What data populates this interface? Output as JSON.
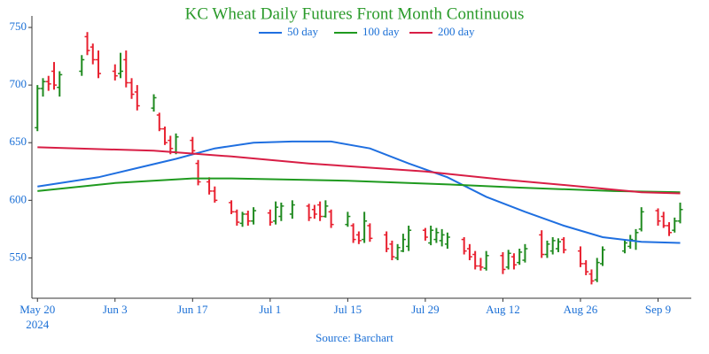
{
  "chart_data": {
    "type": "ohlc",
    "title": "KC Wheat Daily Futures Front Month Continuous",
    "source": "Source: Barchart",
    "x": [
      "2024-05-20",
      "2024-05-21",
      "2024-05-22",
      "2024-05-23",
      "2024-05-24",
      "2024-05-28",
      "2024-05-29",
      "2024-05-30",
      "2024-05-31",
      "2024-06-03",
      "2024-06-04",
      "2024-06-05",
      "2024-06-06",
      "2024-06-07",
      "2024-06-10",
      "2024-06-11",
      "2024-06-12",
      "2024-06-13",
      "2024-06-14",
      "2024-06-17",
      "2024-06-18",
      "2024-06-20",
      "2024-06-21",
      "2024-06-24",
      "2024-06-25",
      "2024-06-26",
      "2024-06-27",
      "2024-06-28",
      "2024-07-01",
      "2024-07-02",
      "2024-07-03",
      "2024-07-05",
      "2024-07-08",
      "2024-07-09",
      "2024-07-10",
      "2024-07-11",
      "2024-07-12",
      "2024-07-15",
      "2024-07-16",
      "2024-07-17",
      "2024-07-18",
      "2024-07-19",
      "2024-07-22",
      "2024-07-23",
      "2024-07-24",
      "2024-07-25",
      "2024-07-26",
      "2024-07-29",
      "2024-07-30",
      "2024-07-31",
      "2024-08-01",
      "2024-08-02",
      "2024-08-05",
      "2024-08-06",
      "2024-08-07",
      "2024-08-08",
      "2024-08-09",
      "2024-08-12",
      "2024-08-13",
      "2024-08-14",
      "2024-08-15",
      "2024-08-16",
      "2024-08-19",
      "2024-08-20",
      "2024-08-21",
      "2024-08-22",
      "2024-08-23",
      "2024-08-26",
      "2024-08-27",
      "2024-08-28",
      "2024-08-29",
      "2024-08-30",
      "2024-09-03",
      "2024-09-04",
      "2024-09-05",
      "2024-09-06",
      "2024-09-09",
      "2024-09-10",
      "2024-09-11",
      "2024-09-12",
      "2024-09-13"
    ],
    "open": [
      663,
      697,
      703,
      712,
      698,
      712,
      742,
      733,
      722,
      712,
      710,
      722,
      702,
      694,
      680,
      674,
      662,
      652,
      642,
      652,
      632,
      616,
      608,
      598,
      590,
      580,
      588,
      582,
      589,
      582,
      586,
      588,
      595,
      592,
      596,
      586,
      590,
      579,
      578,
      570,
      566,
      578,
      570,
      562,
      550,
      556,
      560,
      574,
      563,
      566,
      565,
      562,
      566,
      558,
      553,
      543,
      541,
      552,
      542,
      551,
      546,
      548,
      570,
      553,
      556,
      558,
      566,
      556,
      545,
      536,
      531,
      545,
      556,
      560,
      565,
      575,
      591,
      586,
      578,
      574,
      582
    ],
    "high": [
      700,
      706,
      708,
      720,
      712,
      726,
      746,
      736,
      730,
      718,
      728,
      730,
      706,
      700,
      692,
      676,
      664,
      656,
      658,
      655,
      635,
      620,
      612,
      600,
      592,
      590,
      591,
      594,
      592,
      599,
      598,
      600,
      597,
      596,
      599,
      600,
      592,
      590,
      580,
      573,
      590,
      580,
      573,
      565,
      562,
      571,
      578,
      576,
      578,
      576,
      575,
      572,
      568,
      562,
      556,
      550,
      556,
      555,
      557,
      554,
      558,
      562,
      574,
      565,
      568,
      567,
      568,
      560,
      548,
      540,
      550,
      560,
      566,
      570,
      575,
      594,
      593,
      590,
      581,
      585,
      598
    ],
    "low": [
      660,
      690,
      695,
      696,
      690,
      708,
      726,
      718,
      706,
      704,
      706,
      698,
      688,
      678,
      677,
      660,
      648,
      640,
      640,
      640,
      613,
      605,
      598,
      588,
      578,
      577,
      578,
      579,
      578,
      579,
      582,
      584,
      582,
      584,
      582,
      585,
      576,
      577,
      563,
      562,
      563,
      564,
      555,
      548,
      548,
      555,
      556,
      565,
      561,
      563,
      560,
      558,
      553,
      548,
      540,
      539,
      539,
      536,
      540,
      540,
      544,
      546,
      550,
      550,
      553,
      555,
      554,
      542,
      535,
      527,
      529,
      543,
      554,
      558,
      557,
      573,
      578,
      576,
      569,
      572,
      580
    ],
    "close": [
      697,
      703,
      701,
      700,
      709,
      722,
      730,
      722,
      710,
      708,
      712,
      702,
      692,
      682,
      689,
      662,
      650,
      645,
      655,
      643,
      616,
      608,
      600,
      590,
      581,
      588,
      582,
      591,
      581,
      594,
      595,
      596,
      585,
      588,
      586,
      595,
      579,
      586,
      566,
      565,
      582,
      567,
      558,
      551,
      559,
      566,
      574,
      568,
      574,
      572,
      570,
      568,
      556,
      551,
      543,
      542,
      552,
      540,
      554,
      544,
      555,
      558,
      553,
      562,
      565,
      564,
      557,
      545,
      538,
      530,
      546,
      557,
      563,
      566,
      572,
      590,
      582,
      578,
      572,
      582,
      592
    ],
    "up_color": "#1f8a1f",
    "down_color": "#e8202f",
    "series": [
      {
        "name": "50 day",
        "color": "#1f6fe0",
        "x": [
          "2024-05-20",
          "2024-05-31",
          "2024-06-07",
          "2024-06-14",
          "2024-06-21",
          "2024-06-28",
          "2024-07-05",
          "2024-07-12",
          "2024-07-19",
          "2024-07-26",
          "2024-08-02",
          "2024-08-09",
          "2024-08-16",
          "2024-08-23",
          "2024-08-30",
          "2024-09-06",
          "2024-09-13"
        ],
        "values": [
          612,
          620,
          628,
          636,
          645,
          650,
          651,
          651,
          645,
          632,
          620,
          603,
          590,
          578,
          568,
          564,
          563
        ]
      },
      {
        "name": "100 day",
        "color": "#1f9a1f",
        "x": [
          "2024-05-20",
          "2024-06-03",
          "2024-06-17",
          "2024-06-24",
          "2024-07-15",
          "2024-08-01",
          "2024-08-15",
          "2024-09-01",
          "2024-09-13"
        ],
        "values": [
          608,
          615,
          619,
          619,
          617,
          614,
          611,
          608,
          607
        ]
      },
      {
        "name": "200 day",
        "color": "#d81e45",
        "x": [
          "2024-05-20",
          "2024-06-10",
          "2024-06-24",
          "2024-07-08",
          "2024-07-29",
          "2024-08-12",
          "2024-08-26",
          "2024-09-06",
          "2024-09-13"
        ],
        "values": [
          646,
          643,
          638,
          632,
          625,
          618,
          612,
          607,
          606
        ]
      }
    ],
    "xlim": [
      "2024-05-19",
      "2024-09-15"
    ],
    "xticks": [
      {
        "value": "2024-05-20",
        "label": "May 20"
      },
      {
        "value": "2024-06-03",
        "label": "Jun 3"
      },
      {
        "value": "2024-06-17",
        "label": "Jun 17"
      },
      {
        "value": "2024-07-01",
        "label": "Jul 1"
      },
      {
        "value": "2024-07-15",
        "label": "Jul 15"
      },
      {
        "value": "2024-07-29",
        "label": "Jul 29"
      },
      {
        "value": "2024-08-12",
        "label": "Aug 12"
      },
      {
        "value": "2024-08-26",
        "label": "Aug 26"
      },
      {
        "value": "2024-09-09",
        "label": "Sep 9"
      }
    ],
    "x_year_label": "2024",
    "ylim": [
      515,
      760
    ],
    "yticks": [
      550,
      600,
      650,
      700,
      750
    ]
  }
}
